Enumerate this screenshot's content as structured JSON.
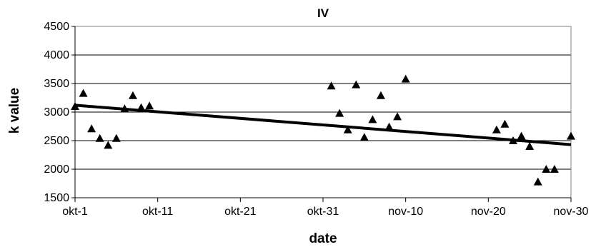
{
  "chart_data": {
    "type": "scatter",
    "title": "IV",
    "xlabel": "date",
    "ylabel": "k value",
    "ylim": [
      1500,
      4500
    ],
    "yticks": [
      1500,
      2000,
      2500,
      3000,
      3500,
      4000,
      4500
    ],
    "xlim": [
      "2000-10-01",
      "2000-11-30"
    ],
    "xticks": [
      {
        "date": "2000-10-01",
        "label": "okt-1"
      },
      {
        "date": "2000-10-11",
        "label": "okt-11"
      },
      {
        "date": "2000-10-21",
        "label": "okt-21"
      },
      {
        "date": "2000-10-31",
        "label": "okt-31"
      },
      {
        "date": "2000-11-10",
        "label": "nov-10"
      },
      {
        "date": "2000-11-20",
        "label": "nov-20"
      },
      {
        "date": "2000-11-30",
        "label": "nov-30"
      }
    ],
    "grid": "horizontal",
    "marker_color": "#000000",
    "points": [
      {
        "x": "2000-10-01",
        "y": 3100
      },
      {
        "x": "2000-10-02",
        "y": 3330
      },
      {
        "x": "2000-10-03",
        "y": 2710
      },
      {
        "x": "2000-10-04",
        "y": 2540
      },
      {
        "x": "2000-10-05",
        "y": 2420
      },
      {
        "x": "2000-10-06",
        "y": 2540
      },
      {
        "x": "2000-10-07",
        "y": 3060
      },
      {
        "x": "2000-10-08",
        "y": 3290
      },
      {
        "x": "2000-10-09",
        "y": 3080
      },
      {
        "x": "2000-10-10",
        "y": 3110
      },
      {
        "x": "2000-11-01",
        "y": 3460
      },
      {
        "x": "2000-11-02",
        "y": 2980
      },
      {
        "x": "2000-11-03",
        "y": 2690
      },
      {
        "x": "2000-11-04",
        "y": 3480
      },
      {
        "x": "2000-11-05",
        "y": 2560
      },
      {
        "x": "2000-11-06",
        "y": 2870
      },
      {
        "x": "2000-11-07",
        "y": 3290
      },
      {
        "x": "2000-11-08",
        "y": 2740
      },
      {
        "x": "2000-11-09",
        "y": 2920
      },
      {
        "x": "2000-11-10",
        "y": 3580
      },
      {
        "x": "2000-11-21",
        "y": 2690
      },
      {
        "x": "2000-11-22",
        "y": 2790
      },
      {
        "x": "2000-11-23",
        "y": 2500
      },
      {
        "x": "2000-11-24",
        "y": 2580
      },
      {
        "x": "2000-11-24",
        "y": 2540
      },
      {
        "x": "2000-11-25",
        "y": 2400
      },
      {
        "x": "2000-11-26",
        "y": 1780
      },
      {
        "x": "2000-11-27",
        "y": 2000
      },
      {
        "x": "2000-11-28",
        "y": 2000
      },
      {
        "x": "2000-11-30",
        "y": 2580
      }
    ],
    "trendline": {
      "type": "linear",
      "from": {
        "x": "2000-10-01",
        "y": 3120
      },
      "to": {
        "x": "2000-11-30",
        "y": 2430
      },
      "color": "#000000"
    }
  }
}
